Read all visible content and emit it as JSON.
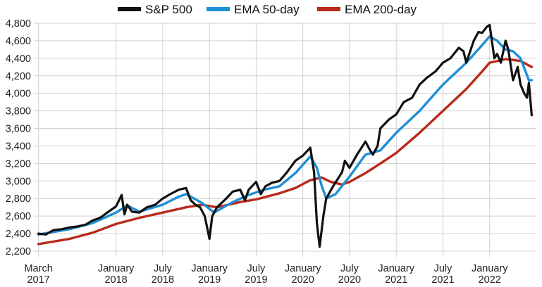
{
  "chart_data": {
    "type": "line",
    "title": "",
    "xlabel": "",
    "ylabel": "",
    "x_range": [
      2017.12,
      2022.5
    ],
    "ylim": [
      2200,
      4800
    ],
    "grid": true,
    "legend_position": "top-center",
    "y_ticks": [
      2200,
      2400,
      2600,
      2800,
      3000,
      3200,
      3400,
      3600,
      3800,
      4000,
      4200,
      4400,
      4600,
      4800
    ],
    "y_tick_labels": [
      "2,200",
      "2,400",
      "2,600",
      "2,800",
      "3,000",
      "3,200",
      "3,400",
      "3,600",
      "3,800",
      "4,000",
      "4,200",
      "4,400",
      "4,600",
      "4,800"
    ],
    "x_ticks": [
      {
        "x": 2017.17,
        "month": "March",
        "year": "2017"
      },
      {
        "x": 2018.0,
        "month": "January",
        "year": "2018"
      },
      {
        "x": 2018.5,
        "month": "July",
        "year": "2018"
      },
      {
        "x": 2019.0,
        "month": "January",
        "year": "2019"
      },
      {
        "x": 2019.5,
        "month": "July",
        "year": "2019"
      },
      {
        "x": 2020.0,
        "month": "January",
        "year": "2020"
      },
      {
        "x": 2020.5,
        "month": "July",
        "year": "2020"
      },
      {
        "x": 2021.0,
        "month": "January",
        "year": "2021"
      },
      {
        "x": 2021.5,
        "month": "July",
        "year": "2021"
      },
      {
        "x": 2022.0,
        "month": "January",
        "year": "2022"
      }
    ],
    "series": [
      {
        "name": "S&P 500",
        "color": "#111111",
        "x": [
          2017.17,
          2017.25,
          2017.33,
          2017.42,
          2017.5,
          2017.58,
          2017.67,
          2017.75,
          2017.83,
          2017.92,
          2018.0,
          2018.06,
          2018.09,
          2018.12,
          2018.17,
          2018.25,
          2018.33,
          2018.42,
          2018.5,
          2018.58,
          2018.67,
          2018.75,
          2018.8,
          2018.85,
          2018.9,
          2018.95,
          2019.0,
          2019.03,
          2019.08,
          2019.17,
          2019.25,
          2019.33,
          2019.38,
          2019.42,
          2019.5,
          2019.55,
          2019.6,
          2019.67,
          2019.75,
          2019.83,
          2019.92,
          2020.0,
          2020.08,
          2020.12,
          2020.15,
          2020.18,
          2020.22,
          2020.25,
          2020.33,
          2020.42,
          2020.45,
          2020.5,
          2020.58,
          2020.67,
          2020.72,
          2020.75,
          2020.8,
          2020.83,
          2020.92,
          2021.0,
          2021.08,
          2021.17,
          2021.25,
          2021.33,
          2021.42,
          2021.5,
          2021.58,
          2021.67,
          2021.72,
          2021.75,
          2021.83,
          2021.88,
          2021.92,
          2021.97,
          2022.0,
          2022.05,
          2022.08,
          2022.12,
          2022.17,
          2022.2,
          2022.25,
          2022.3,
          2022.33,
          2022.37,
          2022.4,
          2022.42,
          2022.45
        ],
        "values": [
          2400,
          2390,
          2440,
          2450,
          2470,
          2480,
          2500,
          2550,
          2580,
          2650,
          2710,
          2840,
          2620,
          2730,
          2650,
          2640,
          2700,
          2730,
          2800,
          2850,
          2900,
          2920,
          2780,
          2730,
          2700,
          2600,
          2340,
          2600,
          2700,
          2790,
          2880,
          2900,
          2780,
          2900,
          2990,
          2850,
          2940,
          2980,
          3000,
          3100,
          3230,
          3290,
          3380,
          3100,
          2520,
          2250,
          2600,
          2800,
          2950,
          3100,
          3230,
          3150,
          3300,
          3450,
          3350,
          3300,
          3400,
          3600,
          3700,
          3760,
          3900,
          3950,
          4100,
          4180,
          4250,
          4350,
          4400,
          4520,
          4480,
          4350,
          4600,
          4700,
          4690,
          4760,
          4780,
          4400,
          4450,
          4350,
          4600,
          4500,
          4150,
          4300,
          4100,
          4000,
          3950,
          4120,
          3750
        ]
      },
      {
        "name": "EMA 50-day",
        "color": "#1f8fd6",
        "x": [
          2017.17,
          2017.5,
          2017.75,
          2018.0,
          2018.12,
          2018.25,
          2018.5,
          2018.67,
          2018.75,
          2018.92,
          2019.05,
          2019.25,
          2019.42,
          2019.58,
          2019.75,
          2019.92,
          2020.08,
          2020.15,
          2020.2,
          2020.25,
          2020.35,
          2020.5,
          2020.67,
          2020.83,
          2021.0,
          2021.25,
          2021.5,
          2021.75,
          2021.92,
          2022.0,
          2022.08,
          2022.17,
          2022.25,
          2022.33,
          2022.42,
          2022.45
        ],
        "values": [
          2390,
          2450,
          2520,
          2640,
          2720,
          2650,
          2730,
          2820,
          2850,
          2750,
          2640,
          2760,
          2840,
          2900,
          2940,
          3090,
          3280,
          3150,
          2950,
          2800,
          2850,
          3050,
          3300,
          3350,
          3550,
          3800,
          4100,
          4350,
          4550,
          4650,
          4600,
          4500,
          4480,
          4400,
          4150,
          4150
        ]
      },
      {
        "name": "EMA 200-day",
        "color": "#b82a1a",
        "x": [
          2017.17,
          2017.5,
          2017.75,
          2018.0,
          2018.25,
          2018.5,
          2018.75,
          2018.92,
          2019.08,
          2019.33,
          2019.5,
          2019.75,
          2019.92,
          2020.08,
          2020.2,
          2020.3,
          2020.42,
          2020.5,
          2020.67,
          2020.83,
          2021.0,
          2021.25,
          2021.5,
          2021.75,
          2021.92,
          2022.0,
          2022.17,
          2022.33,
          2022.45
        ],
        "values": [
          2280,
          2340,
          2410,
          2510,
          2580,
          2640,
          2700,
          2730,
          2700,
          2760,
          2790,
          2860,
          2920,
          3010,
          3040,
          2990,
          2960,
          2990,
          3090,
          3200,
          3320,
          3550,
          3800,
          4050,
          4250,
          4350,
          4390,
          4370,
          4300
        ]
      }
    ]
  }
}
